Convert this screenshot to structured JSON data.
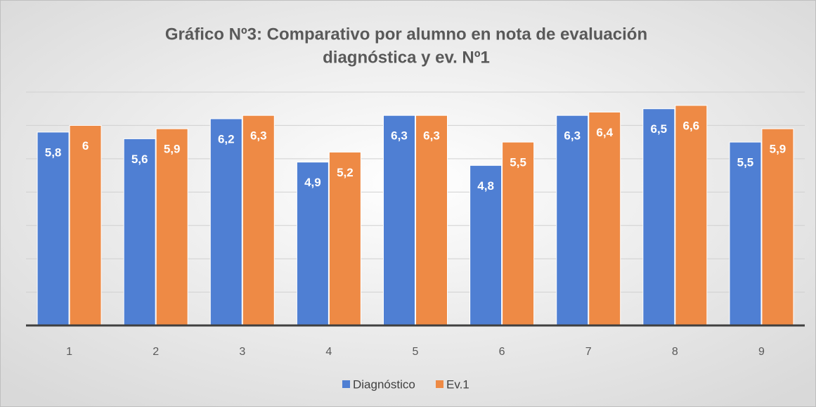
{
  "chart_data": {
    "type": "bar",
    "title": [
      "Gráfico Nº3: Comparativo por alumno en nota de evaluación",
      "diagnóstica y ev. Nº1"
    ],
    "categories": [
      "1",
      "2",
      "3",
      "4",
      "5",
      "6",
      "7",
      "8",
      "9"
    ],
    "series": [
      {
        "name": "Diagnóstico",
        "color": "#4f7fd3",
        "values": [
          5.8,
          5.6,
          6.2,
          4.9,
          6.3,
          4.8,
          6.3,
          6.5,
          5.5
        ],
        "value_labels": [
          "5,8",
          "5,6",
          "6,2",
          "4,9",
          "6,3",
          "4,8",
          "6,3",
          "6,5",
          "5,5"
        ]
      },
      {
        "name": "Ev.1",
        "color": "#ee8a45",
        "values": [
          6,
          5.9,
          6.3,
          5.2,
          6.3,
          5.5,
          6.4,
          6.6,
          5.9
        ],
        "value_labels": [
          "6",
          "5,9",
          "6,3",
          "5,2",
          "6,3",
          "5,5",
          "6,4",
          "6,6",
          "5,9"
        ]
      }
    ],
    "ylim": [
      0,
      7
    ],
    "yticks": [
      0,
      1,
      2,
      3,
      4,
      5,
      6,
      7
    ],
    "grid": true,
    "legend": "bottom"
  }
}
